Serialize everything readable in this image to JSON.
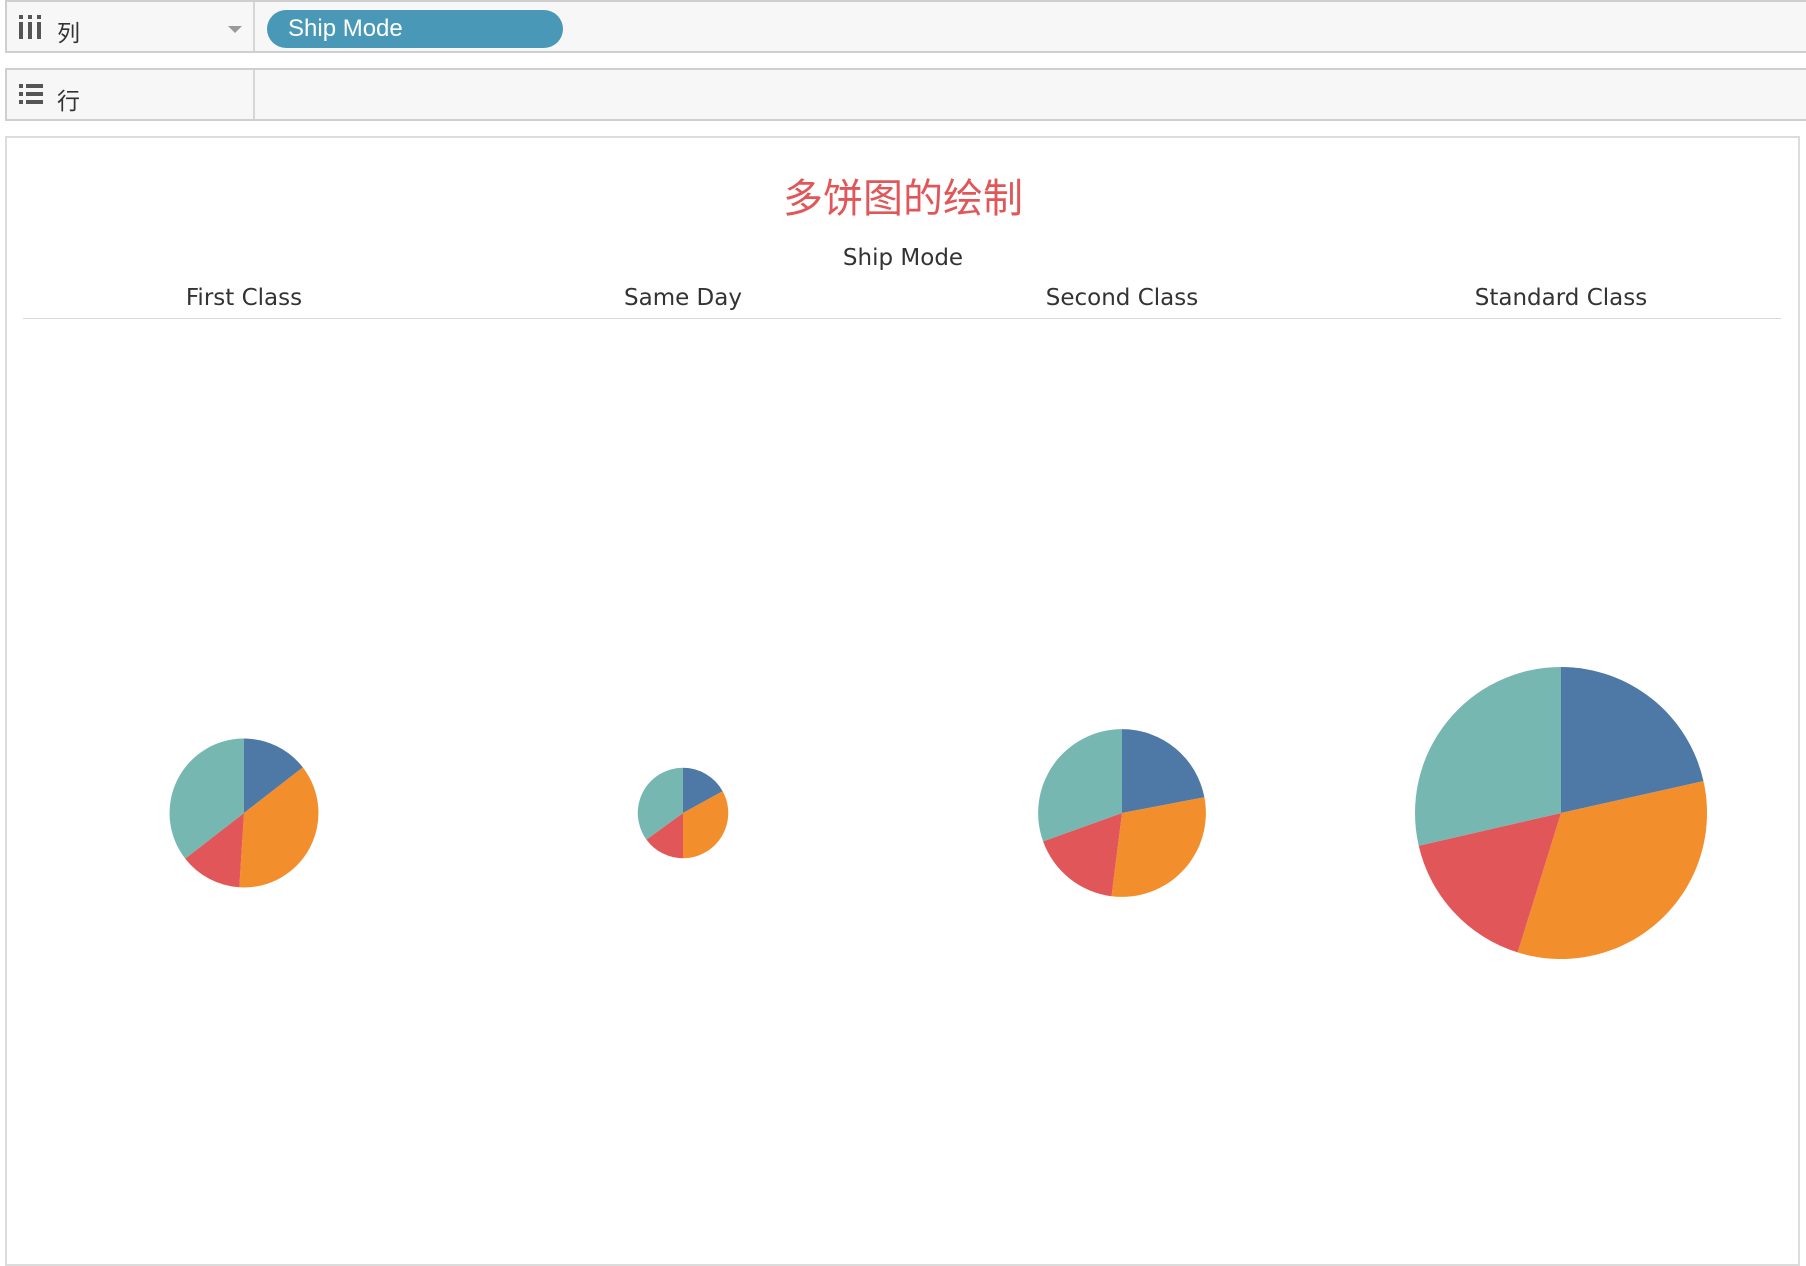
{
  "shelves": {
    "columns": {
      "label": "列",
      "icon": "columns-icon",
      "pills": [
        "Ship Mode"
      ]
    },
    "rows": {
      "label": "行",
      "icon": "rows-icon"
    }
  },
  "chart_data": {
    "type": "pie",
    "title": "多饼图的绘制",
    "column_field": "Ship Mode",
    "categories": [
      "First Class",
      "Same Day",
      "Second Class",
      "Standard Class"
    ],
    "slice_colors": [
      "#4e79a7",
      "#f28e2b",
      "#e15759",
      "#76b7b2"
    ],
    "size_metric_relative": [
      0.26,
      0.096,
      0.33,
      1.0
    ],
    "pies": [
      {
        "category": "First Class",
        "slices": [
          0.145,
          0.365,
          0.135,
          0.355
        ]
      },
      {
        "category": "Same Day",
        "slices": [
          0.17,
          0.33,
          0.15,
          0.35
        ]
      },
      {
        "category": "Second Class",
        "slices": [
          0.22,
          0.3,
          0.175,
          0.305
        ]
      },
      {
        "category": "Standard Class",
        "slices": [
          0.215,
          0.333,
          0.166,
          0.286
        ]
      }
    ]
  }
}
